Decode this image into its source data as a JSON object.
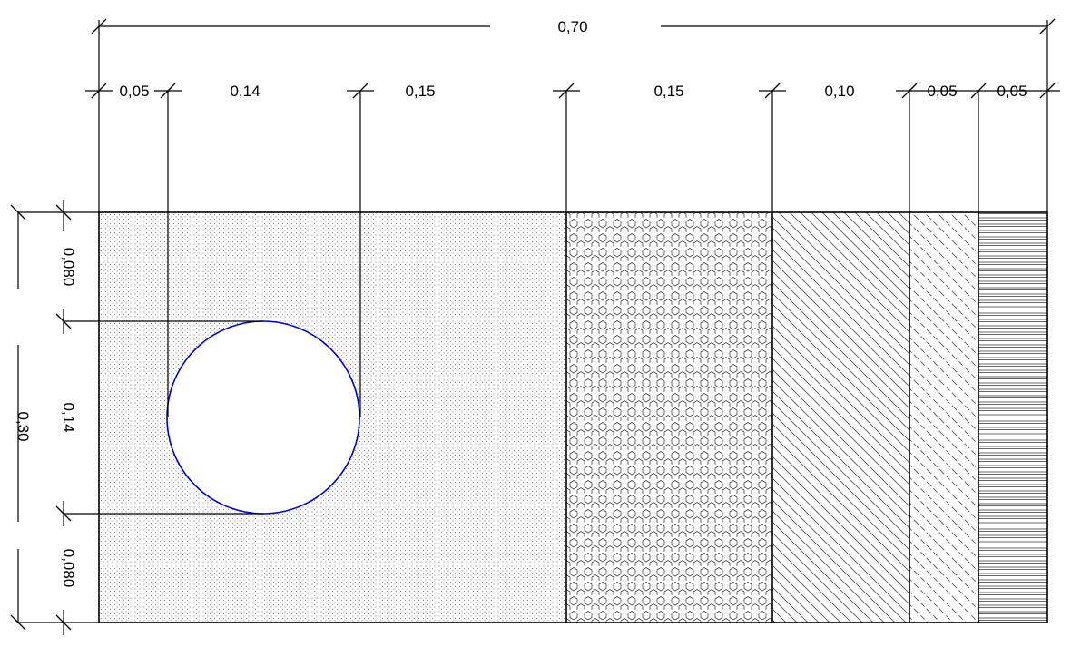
{
  "dimensions": {
    "overall_width": "0,70",
    "widths": [
      "0,05",
      "0,14",
      "0,15",
      "0,15",
      "0,10",
      "0,05",
      "0,05"
    ],
    "left_heights": [
      "0,080",
      "0,14",
      "0,080"
    ],
    "overall_height": "0,30"
  },
  "materials": [
    {
      "pattern": "fine-dots"
    },
    {
      "pattern": "hexagon-grid"
    },
    {
      "pattern": "diagonal-lines"
    },
    {
      "pattern": "dashed-diagonal-lines"
    },
    {
      "pattern": "horizontal-lines"
    }
  ],
  "colors": {
    "line": "#000000",
    "hole_outline": "#0000cc",
    "hatch": "#555555"
  }
}
